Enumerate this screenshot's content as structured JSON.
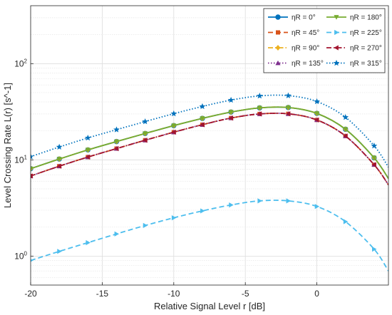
{
  "chart_data": {
    "type": "line",
    "xlabel": "Relative Signal Level r [dB]",
    "ylabel": "Level Crossing Rate L(r) [s^-1]",
    "xlim": [
      -20,
      5
    ],
    "ylim": [
      0.5,
      400
    ],
    "yscale": "log",
    "grid": true,
    "legend_position": "top-right",
    "x_ticks": [
      -20,
      -15,
      -10,
      -5,
      0
    ],
    "x_tick_labels": [
      "-20",
      "-15",
      "-10",
      "-5",
      "0"
    ],
    "y_ticks": [
      1,
      10,
      100
    ],
    "y_tick_labels": [
      "10^0",
      "10^1",
      "10^2"
    ],
    "series": [
      {
        "name": "ηR = 0°",
        "color": "#0072BD",
        "dash": "solid",
        "marker": "circle",
        "x": [
          -20,
          -18,
          -16,
          -14,
          -12,
          -10,
          -8,
          -6,
          -4,
          -2,
          0,
          2,
          4,
          5
        ],
        "values": [
          8.1,
          10.2,
          12.7,
          15.5,
          18.8,
          22.7,
          27.0,
          31.4,
          34.7,
          35.0,
          30.4,
          20.8,
          10.5,
          6.4
        ]
      },
      {
        "name": "ηR = 45°",
        "color": "#D95319",
        "dash": "dash",
        "marker": "square",
        "x": [
          -20,
          -18,
          -16,
          -14,
          -12,
          -10,
          -8,
          -6,
          -4,
          -2,
          0,
          2,
          4,
          5
        ],
        "values": [
          6.8,
          8.6,
          10.7,
          13.1,
          16.0,
          19.4,
          23.2,
          27.2,
          30.0,
          30.1,
          26.0,
          17.7,
          8.9,
          5.5
        ]
      },
      {
        "name": "ηR = 90°",
        "color": "#EDB120",
        "dash": "dashdot",
        "marker": "diamond",
        "x": [
          -20,
          -18,
          -16,
          -14,
          -12,
          -10,
          -8,
          -6,
          -4,
          -2,
          0,
          2,
          4,
          5
        ],
        "values": [
          8.1,
          10.2,
          12.7,
          15.5,
          18.8,
          22.7,
          27.0,
          31.4,
          34.7,
          35.0,
          30.4,
          20.8,
          10.5,
          6.4
        ]
      },
      {
        "name": "ηR = 135°",
        "color": "#7E2F8E",
        "dash": "dotted",
        "marker": "triangle-up",
        "x": [
          -20,
          -18,
          -16,
          -14,
          -12,
          -10,
          -8,
          -6,
          -4,
          -2,
          0,
          2,
          4,
          5
        ],
        "values": [
          6.8,
          8.6,
          10.7,
          13.1,
          16.0,
          19.4,
          23.2,
          27.2,
          30.0,
          30.1,
          26.0,
          17.7,
          8.9,
          5.5
        ]
      },
      {
        "name": "ηR = 180°",
        "color": "#77AC30",
        "dash": "solid",
        "marker": "triangle-down",
        "x": [
          -20,
          -18,
          -16,
          -14,
          -12,
          -10,
          -8,
          -6,
          -4,
          -2,
          0,
          2,
          4,
          5
        ],
        "values": [
          8.1,
          10.2,
          12.7,
          15.5,
          18.8,
          22.7,
          27.0,
          31.4,
          34.7,
          35.0,
          30.4,
          20.8,
          10.5,
          6.4
        ]
      },
      {
        "name": "ηR = 225°",
        "color": "#4DBEEE",
        "dash": "dash",
        "marker": "triangle-right",
        "x": [
          -20,
          -18,
          -16,
          -14,
          -12,
          -10,
          -8,
          -6,
          -4,
          -2,
          0,
          2,
          4,
          5
        ],
        "values": [
          0.9,
          1.12,
          1.38,
          1.7,
          2.08,
          2.5,
          2.95,
          3.4,
          3.75,
          3.75,
          3.28,
          2.28,
          1.18,
          0.7
        ]
      },
      {
        "name": "ηR = 270°",
        "color": "#A2142F",
        "dash": "dashdot",
        "marker": "triangle-left",
        "x": [
          -20,
          -18,
          -16,
          -14,
          -12,
          -10,
          -8,
          -6,
          -4,
          -2,
          0,
          2,
          4,
          5
        ],
        "values": [
          6.8,
          8.6,
          10.7,
          13.1,
          16.0,
          19.4,
          23.2,
          27.2,
          30.0,
          30.1,
          26.0,
          17.7,
          8.9,
          5.5
        ]
      },
      {
        "name": "ηR = 315°",
        "color": "#0072BD",
        "dash": "dotted",
        "marker": "star",
        "x": [
          -20,
          -18,
          -16,
          -14,
          -12,
          -10,
          -8,
          -6,
          -4,
          -2,
          0,
          2,
          4,
          5
        ],
        "values": [
          10.8,
          13.6,
          16.9,
          20.6,
          25.0,
          30.2,
          35.9,
          41.8,
          46.2,
          46.5,
          40.4,
          27.7,
          14.0,
          8.4
        ]
      }
    ]
  }
}
